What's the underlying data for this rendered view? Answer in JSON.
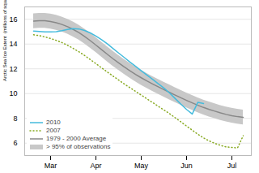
{
  "chart_data": {
    "type": "line",
    "ylabel": "Arctic Sea Ice Extent  (millions of square kilometers)",
    "categories": [
      null,
      null,
      null,
      "Mar",
      null,
      null,
      null,
      null,
      null,
      null,
      null,
      "Apr",
      null,
      null,
      null,
      null,
      null,
      null,
      null,
      "May",
      null,
      null,
      null,
      null,
      null,
      null,
      null,
      "Jun",
      null,
      null,
      null,
      null,
      null,
      null,
      null,
      "Jul",
      null,
      null
    ],
    "ylim": [
      5.0,
      17.0
    ],
    "yticks": [
      6,
      8,
      10,
      12,
      14,
      16
    ],
    "grid": true,
    "legend": "lower left",
    "series": [
      {
        "name": "2010",
        "color": "#44bbdd",
        "line_style": "solid",
        "values": [
          15.05,
          15.02,
          14.98,
          14.98,
          15.0,
          15.08,
          15.18,
          15.25,
          15.22,
          15.1,
          14.9,
          14.65,
          14.35,
          14.02,
          13.65,
          13.28,
          12.92,
          12.55,
          12.2,
          11.85,
          11.5,
          11.15,
          10.8,
          10.45,
          10.05,
          9.6,
          9.15,
          8.72,
          8.35,
          9.3,
          9.2,
          null,
          null,
          null,
          null,
          null,
          null,
          null
        ]
      },
      {
        "name": "2007",
        "color": "#88aa22",
        "line_style": "dotted",
        "values": [
          14.75,
          14.68,
          14.58,
          14.45,
          14.3,
          14.12,
          13.9,
          13.65,
          13.38,
          13.08,
          12.75,
          12.42,
          12.08,
          11.75,
          11.42,
          11.1,
          10.78,
          10.48,
          10.18,
          9.88,
          9.58,
          9.28,
          8.98,
          8.68,
          8.38,
          8.05,
          7.72,
          7.38,
          7.05,
          6.72,
          6.42,
          6.18,
          5.98,
          5.82,
          5.7,
          5.65,
          5.62,
          6.6
        ]
      },
      {
        "name": "1979 - 2000 Average",
        "color": "#888888",
        "line_style": "solid",
        "values": [
          15.85,
          15.88,
          15.88,
          15.82,
          15.72,
          15.58,
          15.4,
          15.18,
          14.92,
          14.62,
          14.28,
          13.92,
          13.55,
          13.18,
          12.82,
          12.48,
          12.15,
          11.84,
          11.55,
          11.28,
          11.02,
          10.78,
          10.55,
          10.32,
          10.1,
          9.88,
          9.66,
          9.45,
          9.25,
          9.06,
          8.88,
          8.72,
          8.58,
          8.44,
          8.32,
          8.22,
          8.14,
          8.08
        ]
      },
      {
        "name": "> 95% of observations",
        "type": "area",
        "color": "#c8c8c8",
        "lower": [
          15.25,
          15.28,
          15.28,
          15.22,
          15.12,
          14.98,
          14.8,
          14.58,
          14.32,
          14.02,
          13.68,
          13.32,
          12.95,
          12.58,
          12.22,
          11.88,
          11.55,
          11.24,
          10.95,
          10.68,
          10.42,
          10.18,
          9.95,
          9.72,
          9.5,
          9.28,
          9.06,
          8.85,
          8.65,
          8.46,
          8.28,
          8.12,
          7.98,
          7.84,
          7.72,
          7.62,
          7.54,
          7.48
        ],
        "upper": [
          16.45,
          16.48,
          16.48,
          16.42,
          16.32,
          16.18,
          16.0,
          15.78,
          15.52,
          15.22,
          14.88,
          14.52,
          14.15,
          13.78,
          13.42,
          13.08,
          12.75,
          12.44,
          12.15,
          11.88,
          11.62,
          11.38,
          11.15,
          10.92,
          10.7,
          10.48,
          10.26,
          10.05,
          9.85,
          9.66,
          9.48,
          9.32,
          9.18,
          9.04,
          8.92,
          8.82,
          8.74,
          8.68
        ]
      }
    ]
  }
}
